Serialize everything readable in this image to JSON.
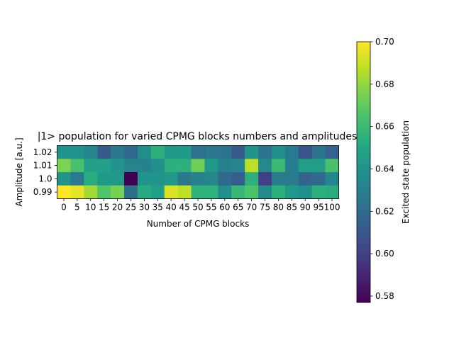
{
  "chart_data": {
    "type": "heatmap",
    "title": "|1> population for varied CPMG blocks numbers and amplitudes",
    "xlabel": "Number of CPMG blocks",
    "ylabel": "Amplitude [a.u.]",
    "x_categories": [
      "0",
      "5",
      "10",
      "15",
      "20",
      "25",
      "30",
      "35",
      "40",
      "45",
      "50",
      "55",
      "60",
      "65",
      "70",
      "75",
      "80",
      "85",
      "90",
      "95",
      "100"
    ],
    "y_categories": [
      "1.02",
      "1.01",
      "1.0",
      "0.99"
    ],
    "values": [
      [
        0.639,
        0.639,
        0.633,
        0.612,
        0.626,
        0.618,
        0.637,
        0.655,
        0.643,
        0.643,
        0.623,
        0.626,
        0.624,
        0.612,
        0.64,
        0.624,
        0.637,
        0.627,
        0.609,
        0.624,
        0.615
      ],
      [
        0.676,
        0.664,
        0.647,
        0.647,
        0.64,
        0.632,
        0.631,
        0.638,
        0.655,
        0.655,
        0.673,
        0.643,
        0.63,
        0.633,
        0.688,
        0.634,
        0.66,
        0.629,
        0.645,
        0.645,
        0.664
      ],
      [
        0.64,
        0.627,
        0.654,
        0.643,
        0.643,
        0.576,
        0.64,
        0.64,
        0.643,
        0.626,
        0.631,
        0.633,
        0.62,
        0.613,
        0.655,
        0.6,
        0.628,
        0.628,
        0.616,
        0.62,
        0.633
      ],
      [
        0.7,
        0.695,
        0.683,
        0.666,
        0.675,
        0.622,
        0.652,
        0.645,
        0.693,
        0.688,
        0.656,
        0.656,
        0.638,
        0.659,
        0.665,
        0.635,
        0.655,
        0.643,
        0.638,
        0.655,
        0.653
      ]
    ],
    "colorbar": {
      "label": "Excited state population",
      "vmin": 0.577,
      "vmax": 0.7,
      "ticks": [
        "0.58",
        "0.60",
        "0.62",
        "0.64",
        "0.66",
        "0.68",
        "0.70"
      ],
      "colormap": "viridis"
    }
  }
}
